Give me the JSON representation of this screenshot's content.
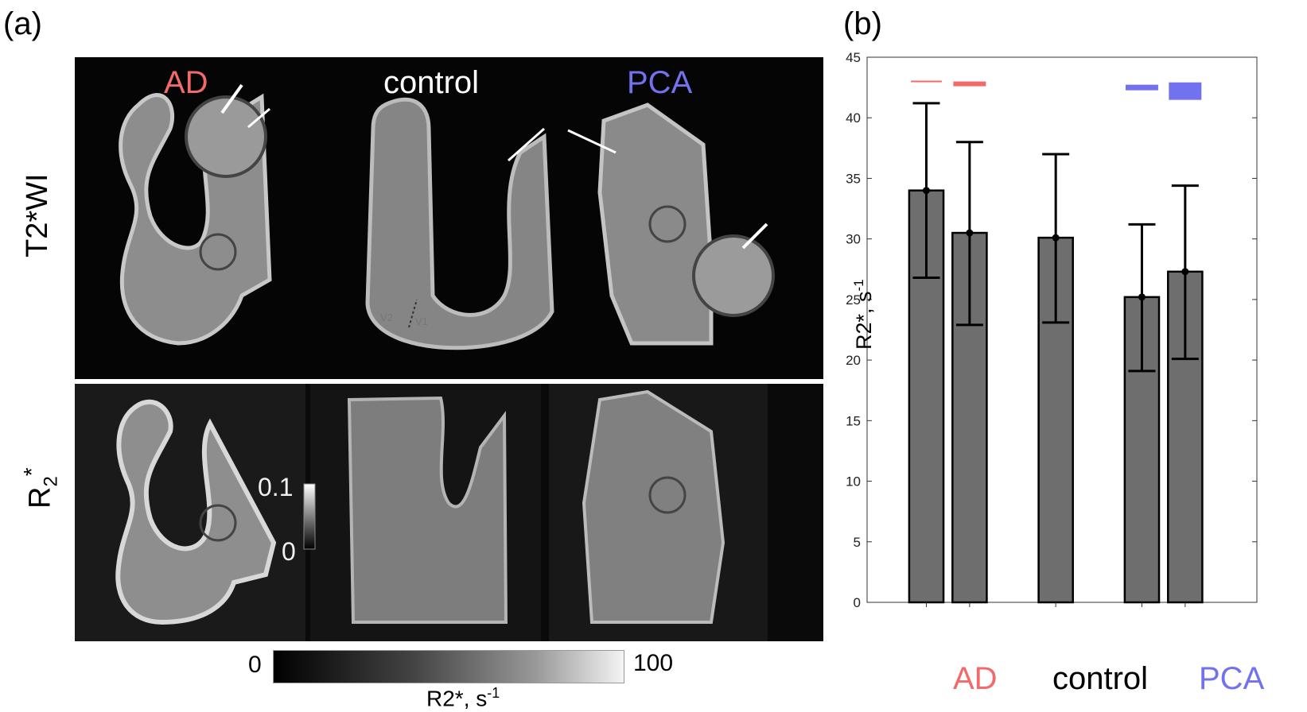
{
  "panel_labels": {
    "a": "(a)",
    "b": "(b)"
  },
  "mri": {
    "columns": [
      {
        "label": "AD",
        "color": "#f26a6a"
      },
      {
        "label": "control",
        "color": "#ffffff"
      },
      {
        "label": "PCA",
        "color": "#7272ee"
      }
    ],
    "rows": {
      "top": "T2*WI",
      "bottom_main": "R",
      "bottom_sub": "2",
      "bottom_sup": "*"
    },
    "region_labels": {
      "v2": "V2",
      "v1": "V1"
    },
    "inset_scale": {
      "max": "0.1",
      "min": "0"
    }
  },
  "colorbar": {
    "min": "0",
    "max": "100",
    "label_main": "R2*, s",
    "label_sup": "-1"
  },
  "chart_data": {
    "type": "bar",
    "categories": [
      "AD",
      "AD",
      "control",
      "PCA",
      "PCA"
    ],
    "values": [
      34.0,
      30.5,
      30.1,
      25.2,
      27.3
    ],
    "error_low": [
      26.8,
      22.9,
      23.1,
      19.1,
      20.1
    ],
    "error_high": [
      41.2,
      38.0,
      37.0,
      31.2,
      34.4
    ],
    "bar_color": "#6e6e6e",
    "ylabel_main": "R2*, s",
    "ylabel_sup": "-1",
    "ylim": [
      0,
      45
    ],
    "yticks": [
      "0",
      "5",
      "10",
      "15",
      "20",
      "25",
      "30",
      "35",
      "40",
      "45"
    ],
    "group_labels": [
      {
        "text": "AD",
        "color": "#f26a6a"
      },
      {
        "text": "control",
        "color": "#000000"
      },
      {
        "text": "PCA",
        "color": "#7272ee"
      }
    ],
    "significance_colors": [
      "#f26a6a",
      "#f26a6a",
      "#7272ee",
      "#7272ee"
    ]
  }
}
